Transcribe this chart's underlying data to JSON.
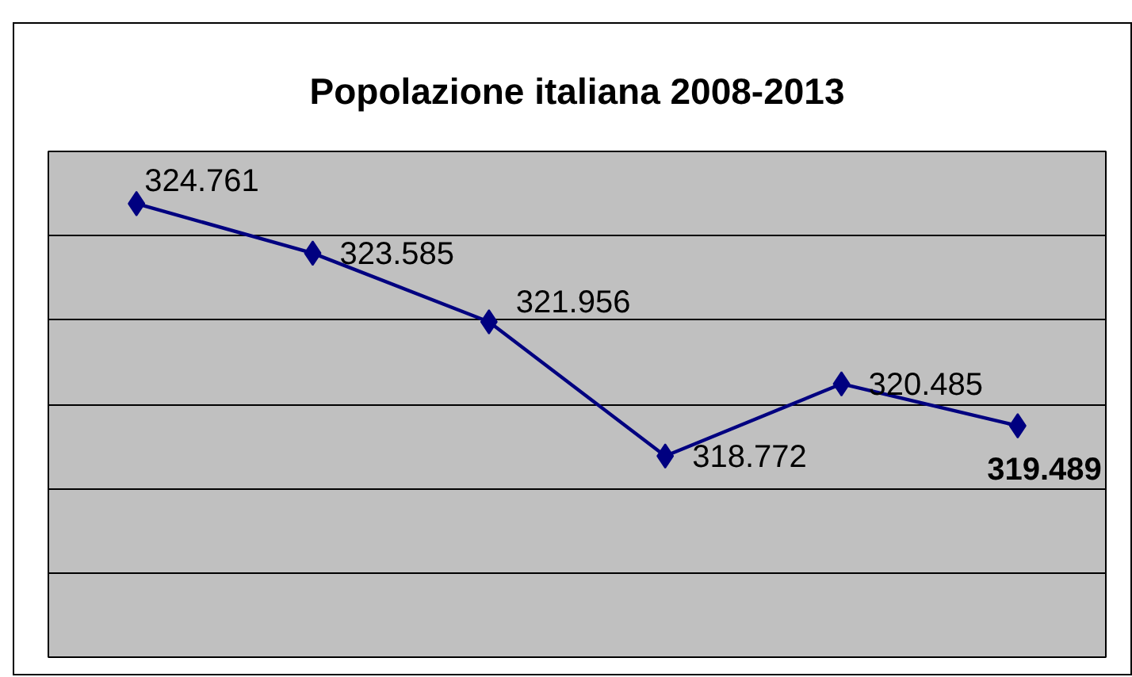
{
  "chart_data": {
    "type": "line",
    "title": "Popolazione italiana 2008-2013",
    "categories": [
      null,
      null,
      null,
      null,
      null,
      null
    ],
    "series": [
      {
        "color": "#000080",
        "values": [
          324.761,
          323.585,
          321.956,
          318.772,
          320.485,
          319.489
        ]
      }
    ],
    "ylim": [
      314,
      326
    ],
    "yticks": [
      {
        "value": 314,
        "label": null
      },
      {
        "value": 316,
        "label": null
      },
      {
        "value": 318,
        "label": null
      },
      {
        "value": 320,
        "label": null
      },
      {
        "value": 322,
        "label": null
      },
      {
        "value": 324,
        "label": null
      },
      {
        "value": 326,
        "label": null
      }
    ],
    "grid": "y",
    "tick_labels": false,
    "marker": "diamond",
    "line_style": "solid",
    "data_labels": true
  }
}
